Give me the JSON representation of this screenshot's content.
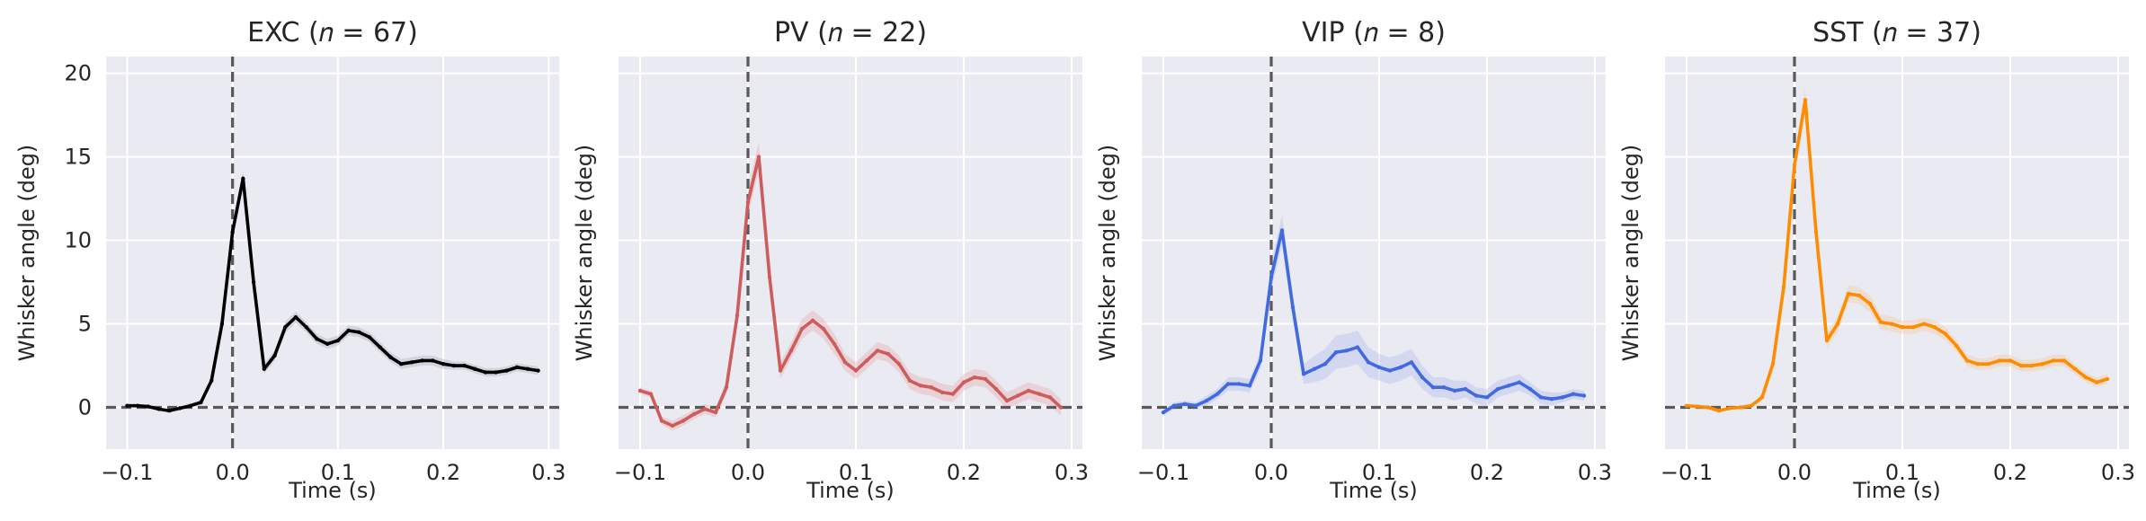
{
  "figure": {
    "background": "#ffffff",
    "axes_facecolor": "#EAEAF2",
    "grid_color": "#ffffff",
    "reference_line_color": "#595959"
  },
  "chart_data": [
    {
      "type": "line",
      "title": "EXC (𝑛 = 67)",
      "xlabel": "Time (s)",
      "ylabel": "Whisker angle (deg)",
      "xlim": [
        -0.12,
        0.31
      ],
      "ylim": [
        -2.5,
        21
      ],
      "xticks": [
        -0.1,
        0.0,
        0.1,
        0.2,
        0.3
      ],
      "xtick_labels": [
        "−0.1",
        "0.0",
        "0.1",
        "0.2",
        "0.3"
      ],
      "yticks": [
        0,
        5,
        10,
        15,
        20
      ],
      "ytick_labels": [
        "0",
        "5",
        "10",
        "15",
        "20"
      ],
      "show_ytick_labels": true,
      "grid": true,
      "vline": 0,
      "hline": 0,
      "color": "#000000",
      "band_color": "#B8B8C8",
      "x": [
        -0.1,
        -0.09,
        -0.08,
        -0.07,
        -0.06,
        -0.05,
        -0.04,
        -0.03,
        -0.02,
        -0.01,
        0.0,
        0.01,
        0.02,
        0.03,
        0.04,
        0.05,
        0.06,
        0.07,
        0.08,
        0.09,
        0.1,
        0.11,
        0.12,
        0.13,
        0.14,
        0.15,
        0.16,
        0.17,
        0.18,
        0.19,
        0.2,
        0.21,
        0.22,
        0.23,
        0.24,
        0.25,
        0.26,
        0.27,
        0.28,
        0.29
      ],
      "y": [
        0.1,
        0.1,
        0.05,
        -0.1,
        -0.2,
        -0.05,
        0.1,
        0.3,
        1.6,
        5.0,
        10.5,
        13.7,
        7.5,
        2.3,
        3.1,
        4.8,
        5.4,
        4.8,
        4.1,
        3.8,
        4.0,
        4.6,
        4.5,
        4.2,
        3.6,
        3.0,
        2.6,
        2.7,
        2.8,
        2.8,
        2.6,
        2.5,
        2.5,
        2.3,
        2.1,
        2.1,
        2.2,
        2.4,
        2.3,
        2.2
      ],
      "error": [
        0.1,
        0.1,
        0.1,
        0.1,
        0.1,
        0.1,
        0.1,
        0.15,
        0.2,
        0.3,
        0.4,
        0.45,
        0.4,
        0.3,
        0.3,
        0.35,
        0.35,
        0.3,
        0.3,
        0.3,
        0.3,
        0.3,
        0.3,
        0.3,
        0.3,
        0.3,
        0.3,
        0.3,
        0.3,
        0.3,
        0.3,
        0.25,
        0.25,
        0.25,
        0.25,
        0.25,
        0.25,
        0.25,
        0.25,
        0.25
      ]
    },
    {
      "type": "line",
      "title": "PV (𝑛 = 22)",
      "xlabel": "Time (s)",
      "ylabel": "Whisker angle (deg)",
      "xlim": [
        -0.12,
        0.31
      ],
      "ylim": [
        -2.5,
        21
      ],
      "xticks": [
        -0.1,
        0.0,
        0.1,
        0.2,
        0.3
      ],
      "xtick_labels": [
        "−0.1",
        "0.0",
        "0.1",
        "0.2",
        "0.3"
      ],
      "yticks": [
        0,
        5,
        10,
        15,
        20
      ],
      "ytick_labels": [
        "0",
        "5",
        "10",
        "15",
        "20"
      ],
      "show_ytick_labels": false,
      "grid": true,
      "vline": 0,
      "hline": 0,
      "color": "#CD5C5C",
      "band_color": "#E8B4B8",
      "x": [
        -0.1,
        -0.09,
        -0.08,
        -0.07,
        -0.06,
        -0.05,
        -0.04,
        -0.03,
        -0.02,
        -0.01,
        0.0,
        0.01,
        0.02,
        0.03,
        0.04,
        0.05,
        0.06,
        0.07,
        0.08,
        0.09,
        0.1,
        0.11,
        0.12,
        0.13,
        0.14,
        0.15,
        0.16,
        0.17,
        0.18,
        0.19,
        0.2,
        0.21,
        0.22,
        0.23,
        0.24,
        0.25,
        0.26,
        0.27,
        0.28,
        0.29
      ],
      "y": [
        1.0,
        0.8,
        -0.8,
        -1.1,
        -0.8,
        -0.4,
        -0.1,
        -0.3,
        1.2,
        5.5,
        12.3,
        15.0,
        7.8,
        2.2,
        3.4,
        4.7,
        5.2,
        4.7,
        3.8,
        2.7,
        2.2,
        2.8,
        3.4,
        3.2,
        2.6,
        1.6,
        1.3,
        1.2,
        0.9,
        0.8,
        1.5,
        1.8,
        1.7,
        1.1,
        0.4,
        0.7,
        1.0,
        0.8,
        0.6,
        0.0
      ],
      "error": [
        0.2,
        0.2,
        0.25,
        0.3,
        0.3,
        0.3,
        0.3,
        0.3,
        0.4,
        0.6,
        0.8,
        0.9,
        0.8,
        0.5,
        0.5,
        0.6,
        0.6,
        0.6,
        0.6,
        0.5,
        0.5,
        0.5,
        0.5,
        0.5,
        0.5,
        0.5,
        0.5,
        0.5,
        0.5,
        0.5,
        0.5,
        0.5,
        0.5,
        0.5,
        0.5,
        0.5,
        0.5,
        0.5,
        0.5,
        0.5
      ]
    },
    {
      "type": "line",
      "title": "VIP (𝑛 = 8)",
      "xlabel": "Time (s)",
      "ylabel": "Whisker angle (deg)",
      "xlim": [
        -0.12,
        0.31
      ],
      "ylim": [
        -2.5,
        21
      ],
      "xticks": [
        -0.1,
        0.0,
        0.1,
        0.2,
        0.3
      ],
      "xtick_labels": [
        "−0.1",
        "0.0",
        "0.1",
        "0.2",
        "0.3"
      ],
      "yticks": [
        0,
        5,
        10,
        15,
        20
      ],
      "ytick_labels": [
        "0",
        "5",
        "10",
        "15",
        "20"
      ],
      "show_ytick_labels": false,
      "grid": true,
      "vline": 0,
      "hline": 0,
      "color": "#4169E1",
      "band_color": "#B8C4EE",
      "x": [
        -0.1,
        -0.09,
        -0.08,
        -0.07,
        -0.06,
        -0.05,
        -0.04,
        -0.03,
        -0.02,
        -0.01,
        0.0,
        0.01,
        0.02,
        0.03,
        0.04,
        0.05,
        0.06,
        0.07,
        0.08,
        0.09,
        0.1,
        0.11,
        0.12,
        0.13,
        0.14,
        0.15,
        0.16,
        0.17,
        0.18,
        0.19,
        0.2,
        0.21,
        0.22,
        0.23,
        0.24,
        0.25,
        0.26,
        0.27,
        0.28,
        0.29
      ],
      "y": [
        -0.3,
        0.1,
        0.2,
        0.1,
        0.4,
        0.8,
        1.4,
        1.4,
        1.3,
        2.8,
        7.8,
        10.6,
        6.0,
        2.0,
        2.3,
        2.6,
        3.3,
        3.4,
        3.6,
        2.7,
        2.4,
        2.2,
        2.4,
        2.7,
        1.8,
        1.2,
        1.2,
        1.0,
        1.1,
        0.7,
        0.6,
        1.1,
        1.3,
        1.5,
        1.1,
        0.6,
        0.5,
        0.6,
        0.8,
        0.7
      ],
      "error": [
        0.2,
        0.2,
        0.2,
        0.2,
        0.3,
        0.3,
        0.4,
        0.4,
        0.4,
        0.5,
        0.8,
        0.9,
        0.7,
        0.6,
        0.8,
        0.9,
        1.0,
        1.0,
        1.0,
        0.9,
        0.8,
        0.8,
        0.8,
        0.8,
        0.7,
        0.6,
        0.6,
        0.6,
        0.5,
        0.5,
        0.5,
        0.5,
        0.5,
        0.5,
        0.4,
        0.4,
        0.4,
        0.3,
        0.3,
        0.3
      ]
    },
    {
      "type": "line",
      "title": "SST (𝑛 = 37)",
      "xlabel": "Time (s)",
      "ylabel": "Whisker angle (deg)",
      "xlim": [
        -0.12,
        0.31
      ],
      "ylim": [
        -2.5,
        21
      ],
      "xticks": [
        -0.1,
        0.0,
        0.1,
        0.2,
        0.3
      ],
      "xtick_labels": [
        "−0.1",
        "0.0",
        "0.1",
        "0.2",
        "0.3"
      ],
      "yticks": [
        0,
        5,
        10,
        15,
        20
      ],
      "ytick_labels": [
        "0",
        "5",
        "10",
        "15",
        "20"
      ],
      "show_ytick_labels": false,
      "grid": true,
      "vline": 0,
      "hline": 0,
      "color": "#FF8C00",
      "band_color": "#F5CFA8",
      "x": [
        -0.1,
        -0.09,
        -0.08,
        -0.07,
        -0.06,
        -0.05,
        -0.04,
        -0.03,
        -0.02,
        -0.01,
        0.0,
        0.01,
        0.02,
        0.03,
        0.04,
        0.05,
        0.06,
        0.07,
        0.08,
        0.09,
        0.1,
        0.11,
        0.12,
        0.13,
        0.14,
        0.15,
        0.16,
        0.17,
        0.18,
        0.19,
        0.2,
        0.21,
        0.22,
        0.23,
        0.24,
        0.25,
        0.26,
        0.27,
        0.28,
        0.29
      ],
      "y": [
        0.1,
        0.05,
        0.0,
        -0.2,
        -0.05,
        0.0,
        0.1,
        0.6,
        2.6,
        7.2,
        14.5,
        18.4,
        10.5,
        4.0,
        5.0,
        6.8,
        6.7,
        6.2,
        5.1,
        5.0,
        4.8,
        4.8,
        5.0,
        4.8,
        4.4,
        3.7,
        2.8,
        2.6,
        2.6,
        2.8,
        2.8,
        2.5,
        2.5,
        2.6,
        2.8,
        2.8,
        2.3,
        1.8,
        1.5,
        1.7
      ],
      "error": [
        0.1,
        0.1,
        0.1,
        0.1,
        0.1,
        0.1,
        0.1,
        0.2,
        0.3,
        0.4,
        0.6,
        0.7,
        0.6,
        0.4,
        0.5,
        0.5,
        0.5,
        0.5,
        0.45,
        0.45,
        0.4,
        0.4,
        0.4,
        0.4,
        0.4,
        0.35,
        0.35,
        0.35,
        0.35,
        0.35,
        0.35,
        0.35,
        0.35,
        0.35,
        0.35,
        0.35,
        0.3,
        0.3,
        0.3,
        0.3
      ]
    }
  ]
}
